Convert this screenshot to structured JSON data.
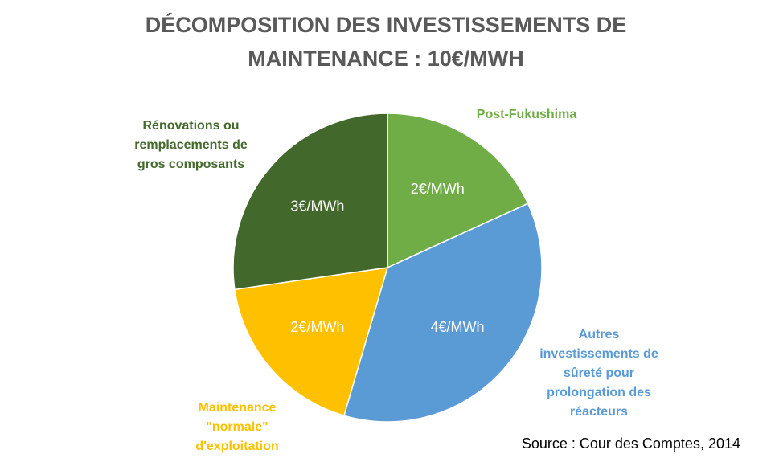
{
  "chart_data": {
    "type": "pie",
    "title": "DÉCOMPOSITION DES INVESTISSEMENTS DE MAINTENANCE : 10€/MWH",
    "categories": [
      "Post-Fukushima",
      "Autres investissements de sûreté pour prolongation des réacteurs",
      "Maintenance \"normale\" d'exploitation",
      "Rénovations ou remplacements de gros composants"
    ],
    "values": [
      2,
      4,
      2,
      3
    ],
    "value_labels": [
      "2€/MWh",
      "4€/MWh",
      "2€/MWh",
      "3€/MWh"
    ],
    "colors": [
      "#70ad47",
      "#5b9bd5",
      "#ffc000",
      "#43682b"
    ],
    "source": "Source : Cour des Comptes, 2014"
  }
}
